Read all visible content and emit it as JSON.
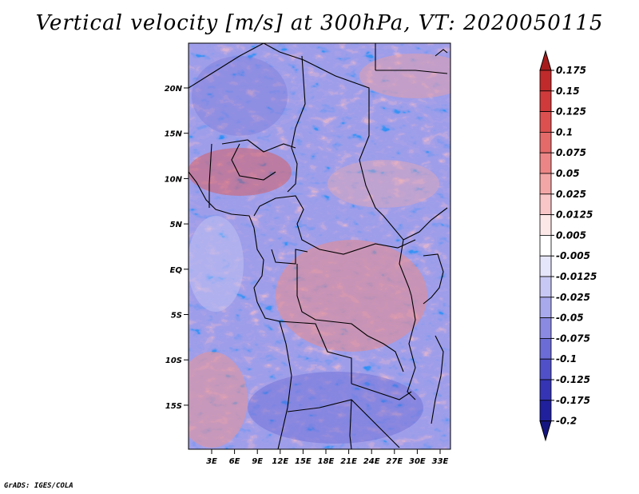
{
  "title": "Vertical velocity [m/s] at 300hPa, VT: 2020050115",
  "credit": "GrADS: IGES/COLA",
  "map": {
    "variable": "Vertical velocity",
    "units": "m/s",
    "level": "300hPa",
    "valid_time": "2020050115",
    "lat_ticks": [
      "20N",
      "15N",
      "10N",
      "5N",
      "EQ",
      "5S",
      "10S",
      "15S"
    ],
    "lon_ticks": [
      "3E",
      "6E",
      "9E",
      "12E",
      "15E",
      "18E",
      "21E",
      "24E",
      "27E",
      "30E",
      "33E"
    ]
  },
  "colorbar": {
    "labels": [
      "0.175",
      "0.15",
      "0.125",
      "0.1",
      "0.075",
      "0.05",
      "0.025",
      "0.0125",
      "0.005",
      "-0.005",
      "-0.0125",
      "-0.025",
      "-0.05",
      "-0.075",
      "-0.1",
      "-0.125",
      "-0.175",
      "-0.2"
    ],
    "colors": [
      "#a61c1c",
      "#c02a2a",
      "#d03a3a",
      "#dc5050",
      "#e46a6a",
      "#ec8686",
      "#f3a6a6",
      "#f8c6c6",
      "#fde8e8",
      "#ffffff",
      "#e6e6fb",
      "#c8c8f4",
      "#a8a8ec",
      "#8a8ae2",
      "#6c6cd6",
      "#5050c8",
      "#3434b4",
      "#20209c",
      "#161680"
    ]
  }
}
